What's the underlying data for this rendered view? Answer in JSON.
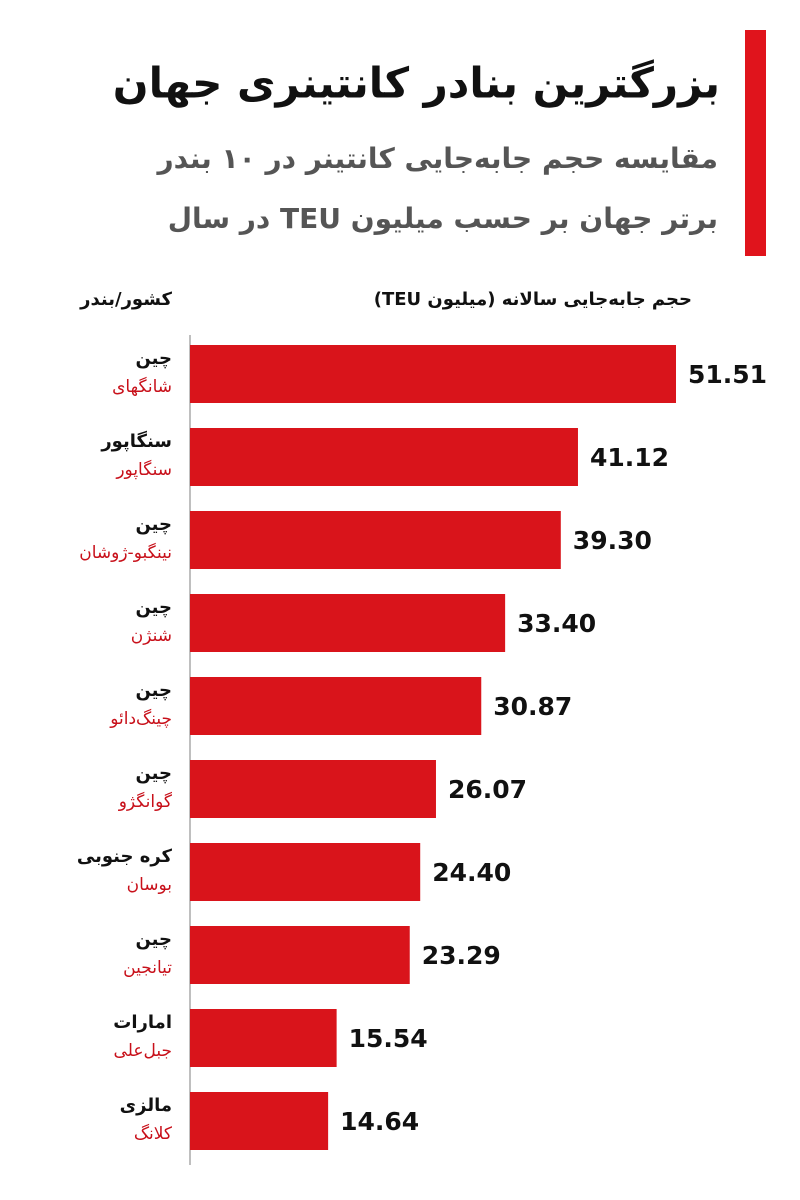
{
  "chart_data": {
    "type": "bar",
    "orientation": "horizontal",
    "title": "بزرگترین بنادر کانتینری جهان",
    "subtitle": [
      "مقایسه حجم جابه‌جایی کانتینر در ۱۰ بندر",
      "برتر جهان بر حسب میلیون TEU در سال"
    ],
    "category_header": "کشور/بندر",
    "value_header": "حجم جابه‌جایی سالانه (میلیون TEU)",
    "categories": [
      "چین",
      "سنگاپور",
      "چین",
      "چین",
      "چین",
      "چین",
      "کره جنوبی",
      "چین",
      "امارات",
      "مالزی"
    ],
    "ports": [
      "شانگهای",
      "سنگاپور",
      "نینگبو-ژوشان",
      "شنژن",
      "چینگ‌دائو",
      "گوانگژو",
      "بوسان",
      "تیانجین",
      "جبل‌علی",
      "کلانگ"
    ],
    "values": [
      51.51,
      41.12,
      39.3,
      33.4,
      30.87,
      26.07,
      24.4,
      23.29,
      15.54,
      14.64
    ],
    "value_labels": [
      "51.51",
      "41.12",
      "39.30",
      "33.40",
      "30.87",
      "26.07",
      "24.40",
      "23.29",
      "15.54",
      "14.64"
    ],
    "color": "#d9141b"
  }
}
